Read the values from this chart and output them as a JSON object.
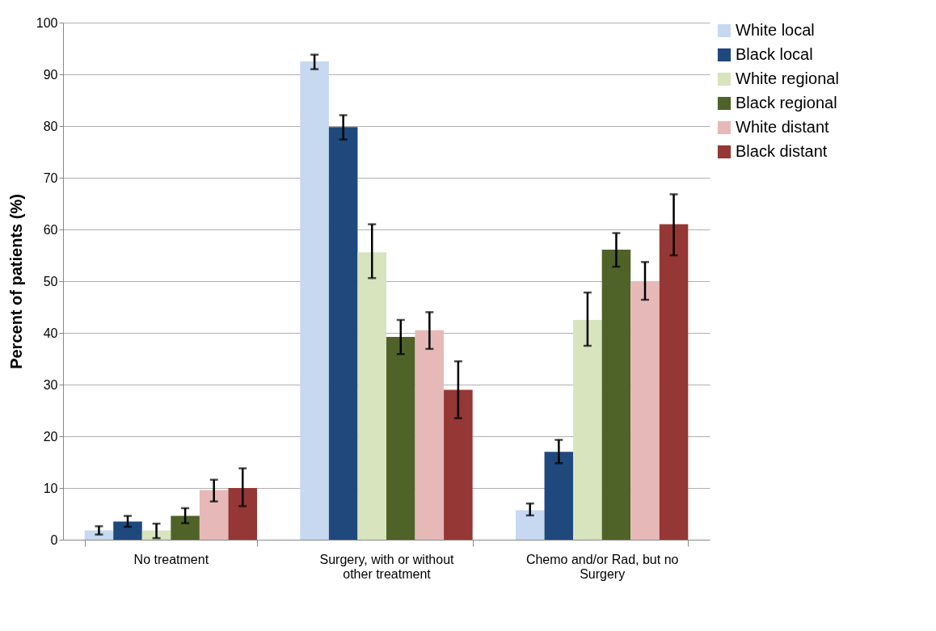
{
  "chart_data": {
    "type": "bar",
    "ylabel": "Percent of patients (%)",
    "categories": [
      "No treatment",
      "Surgery, with or without other treatment",
      "Chemo and/or Rad, but no Surgery"
    ],
    "series": [
      {
        "name": "White local",
        "color": "#c6d9f1",
        "values": [
          1.8,
          92.5,
          5.7
        ],
        "errors": [
          [
            1.0,
            2.6
          ],
          [
            91.0,
            93.8
          ],
          [
            4.7,
            7.0
          ]
        ]
      },
      {
        "name": "Black local",
        "color": "#1f497d",
        "values": [
          3.5,
          79.8,
          17.0
        ],
        "errors": [
          [
            2.5,
            4.6
          ],
          [
            77.4,
            82.1
          ],
          [
            14.8,
            19.3
          ]
        ]
      },
      {
        "name": "White regional",
        "color": "#d7e4bd",
        "values": [
          1.8,
          55.6,
          42.5
        ],
        "errors": [
          [
            0.3,
            3.1
          ],
          [
            50.6,
            61.0
          ],
          [
            37.5,
            47.8
          ]
        ]
      },
      {
        "name": "Black regional",
        "color": "#4f6228",
        "values": [
          4.6,
          39.2,
          56.1
        ],
        "errors": [
          [
            3.2,
            6.1
          ],
          [
            35.9,
            42.5
          ],
          [
            52.8,
            59.3
          ]
        ]
      },
      {
        "name": "White distant",
        "color": "#e6b9b8",
        "values": [
          9.6,
          40.5,
          50.0
        ],
        "errors": [
          [
            7.4,
            11.6
          ],
          [
            36.9,
            44.0
          ],
          [
            46.4,
            53.7
          ]
        ]
      },
      {
        "name": "Black distant",
        "color": "#953735",
        "values": [
          10.0,
          29.0,
          61.0
        ],
        "errors": [
          [
            6.5,
            13.8
          ],
          [
            23.5,
            34.5
          ],
          [
            55.0,
            66.8
          ]
        ]
      }
    ],
    "ylim": [
      0,
      100
    ],
    "yticks": [
      0,
      10,
      20,
      30,
      40,
      50,
      60,
      70,
      80,
      90,
      100
    ],
    "grid": "y",
    "legend": "right"
  }
}
